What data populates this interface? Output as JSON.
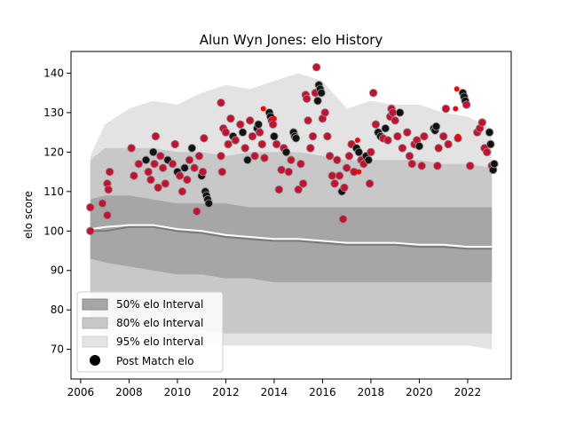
{
  "chart_data": {
    "type": "scatter",
    "title": "Alun Wyn Jones: elo History",
    "ylabel": "elo score",
    "xlabel": "",
    "xlim": [
      2005.6,
      2023.8
    ],
    "ylim": [
      62.5,
      145.5
    ],
    "x_ticks": [
      2006,
      2008,
      2010,
      2012,
      2014,
      2016,
      2018,
      2020,
      2022
    ],
    "y_ticks": [
      70,
      80,
      90,
      100,
      110,
      120,
      130,
      140
    ],
    "legend": {
      "placement": "lower-left",
      "entries": [
        "50% elo Interval",
        "80% elo Interval",
        "95% elo Interval",
        "Post Match elo"
      ]
    },
    "colors": {
      "band_50": "#a6a6a6",
      "band_80": "#c8c8c8",
      "band_95": "#e3e3e3",
      "median_line": "#ffffff",
      "mean_line": "#7a7a7a",
      "point_win": "#c8102e",
      "point_loss": "#111111",
      "point_edge": "#8a8a8a",
      "small_point": "#ff0000"
    },
    "interval_bands": {
      "x": [
        2006.4,
        2007.0,
        2008.0,
        2009.0,
        2010.0,
        2011.0,
        2012.0,
        2013.0,
        2014.0,
        2015.0,
        2016.0,
        2017.0,
        2018.0,
        2019.0,
        2020.0,
        2021.0,
        2022.0,
        2023.0
      ],
      "p95_upper": [
        119,
        127,
        131,
        133,
        132,
        135,
        137,
        136,
        138,
        140,
        138,
        131,
        133,
        132,
        132,
        130,
        129,
        126
      ],
      "p80_upper": [
        118,
        121,
        121,
        121,
        120,
        120,
        119,
        120,
        120,
        120,
        119,
        118,
        118,
        118,
        118,
        117,
        117,
        116
      ],
      "p50_upper": [
        108,
        109,
        109,
        108,
        107,
        107,
        107,
        106,
        106,
        106,
        106,
        106,
        106,
        106,
        106,
        106,
        106,
        106
      ],
      "p50_lower": [
        93,
        92,
        91,
        90,
        89,
        89,
        88,
        88,
        87,
        87,
        87,
        87,
        87,
        87,
        87,
        87,
        87,
        87
      ],
      "p80_lower": [
        78,
        76,
        76,
        75,
        75,
        75,
        74,
        74,
        74,
        74,
        74,
        74,
        74,
        74,
        74,
        74,
        74,
        74
      ],
      "p95_lower": [
        76,
        74,
        74,
        73,
        72,
        72,
        71,
        71,
        71,
        71,
        71,
        71,
        71,
        71,
        71,
        71,
        71,
        70
      ],
      "median": [
        100.5,
        101,
        101.5,
        101.5,
        100.5,
        100,
        99,
        98.5,
        98,
        98,
        97.5,
        97,
        97,
        97,
        96.5,
        96.5,
        96,
        96
      ],
      "mean": [
        100,
        100,
        101,
        101,
        100,
        99.5,
        98.5,
        98,
        97.5,
        97.5,
        97,
        96.5,
        96.5,
        96.5,
        96,
        96,
        95.5,
        95.5
      ]
    },
    "series": [
      {
        "name": "Post Match elo",
        "points": [
          [
            2006.4,
            106,
            "w"
          ],
          [
            2006.4,
            100,
            "w"
          ],
          [
            2006.9,
            107,
            "w"
          ],
          [
            2007.1,
            112,
            "w"
          ],
          [
            2007.15,
            110.5,
            "w"
          ],
          [
            2007.2,
            115,
            "w"
          ],
          [
            2007.1,
            104,
            "w"
          ],
          [
            2008.1,
            121,
            "w"
          ],
          [
            2008.2,
            114,
            "w"
          ],
          [
            2008.4,
            117,
            "w"
          ],
          [
            2008.7,
            118,
            "b"
          ],
          [
            2008.8,
            115,
            "w"
          ],
          [
            2008.9,
            113,
            "w"
          ],
          [
            2009.0,
            120,
            "b"
          ],
          [
            2009.05,
            117,
            "w"
          ],
          [
            2009.1,
            124,
            "w"
          ],
          [
            2009.2,
            111,
            "w"
          ],
          [
            2009.3,
            119,
            "w"
          ],
          [
            2009.4,
            116,
            "w"
          ],
          [
            2009.5,
            112,
            "w"
          ],
          [
            2009.6,
            118,
            "b"
          ],
          [
            2009.8,
            117,
            "w"
          ],
          [
            2009.9,
            122,
            "w"
          ],
          [
            2010.0,
            115,
            "b"
          ],
          [
            2010.1,
            114,
            "w"
          ],
          [
            2010.2,
            110,
            "w"
          ],
          [
            2010.3,
            116,
            "b"
          ],
          [
            2010.4,
            113,
            "w"
          ],
          [
            2010.5,
            118,
            "w"
          ],
          [
            2010.6,
            121,
            "b"
          ],
          [
            2010.7,
            116,
            "w"
          ],
          [
            2010.8,
            105,
            "w"
          ],
          [
            2010.9,
            119,
            "w"
          ],
          [
            2011.0,
            114,
            "b"
          ],
          [
            2011.05,
            115,
            "w"
          ],
          [
            2011.1,
            123.5,
            "w"
          ],
          [
            2011.15,
            110,
            "b"
          ],
          [
            2011.2,
            109,
            "b"
          ],
          [
            2011.25,
            108,
            "b"
          ],
          [
            2011.3,
            107,
            "b"
          ],
          [
            2011.8,
            132.5,
            "w"
          ],
          [
            2011.8,
            119,
            "w"
          ],
          [
            2011.85,
            115,
            "w"
          ],
          [
            2011.9,
            126,
            "w"
          ],
          [
            2012.0,
            125,
            "w"
          ],
          [
            2012.1,
            122,
            "w"
          ],
          [
            2012.2,
            128.5,
            "w"
          ],
          [
            2012.3,
            124,
            "b"
          ],
          [
            2012.4,
            123,
            "w"
          ],
          [
            2012.6,
            127,
            "w"
          ],
          [
            2012.7,
            125,
            "b"
          ],
          [
            2012.8,
            121,
            "w"
          ],
          [
            2012.9,
            118,
            "b"
          ],
          [
            2013.0,
            128,
            "w"
          ],
          [
            2013.1,
            124,
            "w"
          ],
          [
            2013.2,
            119,
            "w"
          ],
          [
            2013.3,
            126,
            "b"
          ],
          [
            2013.35,
            127,
            "b"
          ],
          [
            2013.4,
            125,
            "w"
          ],
          [
            2013.5,
            122,
            "w"
          ],
          [
            2013.6,
            118.5,
            "w"
          ],
          [
            2013.8,
            130,
            "b"
          ],
          [
            2013.85,
            129,
            "b"
          ],
          [
            2013.9,
            128,
            "w"
          ],
          [
            2013.95,
            127,
            "w"
          ],
          [
            2014.0,
            124,
            "b"
          ],
          [
            2014.1,
            122,
            "w"
          ],
          [
            2014.2,
            110.5,
            "w"
          ],
          [
            2014.3,
            115.5,
            "w"
          ],
          [
            2014.4,
            121,
            "w"
          ],
          [
            2014.5,
            120,
            "b"
          ],
          [
            2014.6,
            115,
            "w"
          ],
          [
            2014.7,
            118,
            "w"
          ],
          [
            2014.8,
            125,
            "b"
          ],
          [
            2014.85,
            124,
            "b"
          ],
          [
            2014.9,
            123.5,
            "b"
          ],
          [
            2015.0,
            110.5,
            "w"
          ],
          [
            2015.1,
            117,
            "w"
          ],
          [
            2015.2,
            112,
            "w"
          ],
          [
            2015.3,
            134.5,
            "w"
          ],
          [
            2015.35,
            133.5,
            "w"
          ],
          [
            2015.4,
            128,
            "w"
          ],
          [
            2015.5,
            121,
            "w"
          ],
          [
            2015.6,
            124,
            "w"
          ],
          [
            2015.7,
            135,
            "w"
          ],
          [
            2015.75,
            141.5,
            "w"
          ],
          [
            2015.8,
            133,
            "b"
          ],
          [
            2015.85,
            137,
            "b"
          ],
          [
            2015.9,
            136,
            "b"
          ],
          [
            2015.95,
            135,
            "b"
          ],
          [
            2016.0,
            128.5,
            "w"
          ],
          [
            2016.1,
            130,
            "w"
          ],
          [
            2016.2,
            124,
            "w"
          ],
          [
            2016.3,
            119,
            "w"
          ],
          [
            2016.4,
            114,
            "w"
          ],
          [
            2016.5,
            112,
            "w"
          ],
          [
            2016.6,
            118,
            "w"
          ],
          [
            2016.7,
            114,
            "w"
          ],
          [
            2016.8,
            110,
            "b"
          ],
          [
            2016.85,
            103,
            "w"
          ],
          [
            2016.9,
            111,
            "w"
          ],
          [
            2017.0,
            116,
            "w"
          ],
          [
            2017.1,
            119,
            "w"
          ],
          [
            2017.2,
            122,
            "w"
          ],
          [
            2017.3,
            115,
            "w"
          ],
          [
            2017.4,
            121,
            "b"
          ],
          [
            2017.5,
            120,
            "b"
          ],
          [
            2017.6,
            118,
            "w"
          ],
          [
            2017.7,
            117,
            "w"
          ],
          [
            2017.8,
            119,
            "b"
          ],
          [
            2017.9,
            118,
            "b"
          ],
          [
            2017.95,
            112,
            "w"
          ],
          [
            2018.0,
            120,
            "w"
          ],
          [
            2018.1,
            135,
            "w"
          ],
          [
            2018.2,
            127,
            "w"
          ],
          [
            2018.3,
            125,
            "b"
          ],
          [
            2018.4,
            124,
            "b"
          ],
          [
            2018.5,
            123.5,
            "w"
          ],
          [
            2018.6,
            126,
            "b"
          ],
          [
            2018.7,
            123,
            "w"
          ],
          [
            2018.8,
            129,
            "w"
          ],
          [
            2018.85,
            131,
            "w"
          ],
          [
            2018.9,
            130,
            "w"
          ],
          [
            2019.0,
            128,
            "w"
          ],
          [
            2019.1,
            124,
            "w"
          ],
          [
            2019.2,
            130,
            "b"
          ],
          [
            2019.3,
            121,
            "w"
          ],
          [
            2019.5,
            125,
            "w"
          ],
          [
            2019.6,
            119,
            "w"
          ],
          [
            2019.7,
            117,
            "w"
          ],
          [
            2019.8,
            122,
            "w"
          ],
          [
            2019.9,
            123,
            "w"
          ],
          [
            2020.0,
            121.5,
            "b"
          ],
          [
            2020.1,
            116.5,
            "w"
          ],
          [
            2020.2,
            124,
            "w"
          ],
          [
            2020.6,
            126,
            "b"
          ],
          [
            2020.65,
            125.5,
            "b"
          ],
          [
            2020.7,
            126.5,
            "b"
          ],
          [
            2020.8,
            121,
            "w"
          ],
          [
            2020.75,
            116.5,
            "w"
          ],
          [
            2021.0,
            124,
            "w"
          ],
          [
            2021.1,
            131,
            "w"
          ],
          [
            2021.2,
            122,
            "w"
          ],
          [
            2021.6,
            123.5,
            "w"
          ],
          [
            2021.8,
            135,
            "b"
          ],
          [
            2021.85,
            134,
            "b"
          ],
          [
            2021.9,
            133,
            "b"
          ],
          [
            2021.95,
            132,
            "w"
          ],
          [
            2022.1,
            116.5,
            "w"
          ],
          [
            2022.4,
            125,
            "w"
          ],
          [
            2022.5,
            126,
            "w"
          ],
          [
            2022.6,
            127.5,
            "w"
          ],
          [
            2022.7,
            121,
            "w"
          ],
          [
            2022.8,
            120,
            "w"
          ],
          [
            2022.9,
            125,
            "b"
          ],
          [
            2022.95,
            122,
            "b"
          ],
          [
            2023.0,
            116.5,
            "w"
          ],
          [
            2023.05,
            115.5,
            "b"
          ],
          [
            2023.1,
            117,
            "b"
          ]
        ]
      }
    ],
    "small_points": [
      [
        2013.55,
        131
      ],
      [
        2014.0,
        128.5
      ],
      [
        2017.45,
        123
      ],
      [
        2017.5,
        115
      ],
      [
        2021.55,
        136
      ],
      [
        2021.5,
        131
      ],
      [
        2021.6,
        124
      ]
    ]
  }
}
